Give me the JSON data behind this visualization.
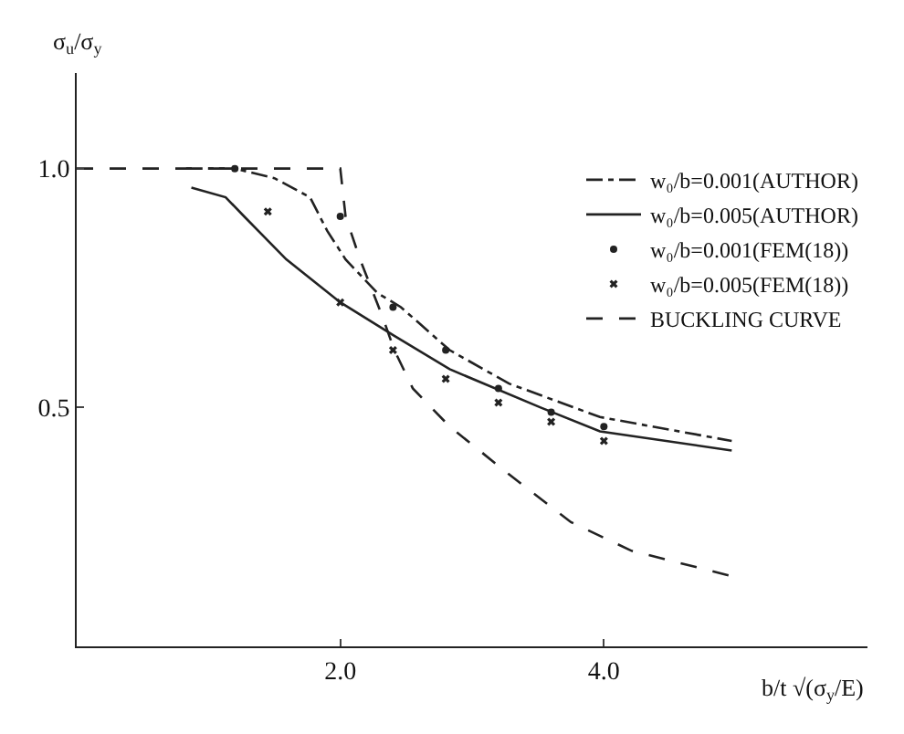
{
  "chart_data": {
    "type": "line",
    "xlabel": "b/t √(σ$_{y}$/E)",
    "ylabel": "σ$_{u}$/σ$_{y}$",
    "xlim": [
      0,
      6
    ],
    "ylim": [
      0,
      1.2
    ],
    "xticks": [
      {
        "value": 2,
        "label": "2.0"
      },
      {
        "value": 4,
        "label": "4.0"
      }
    ],
    "yticks": [
      {
        "value": 0.5,
        "label": "0.5"
      },
      {
        "value": 1,
        "label": "1.0"
      }
    ],
    "grid": false,
    "legend": "top right",
    "series": [
      {
        "name": "w₀/b=0.001(AUTHOR)",
        "line_style": "dashdot",
        "marker": "none",
        "color": "#222222",
        "x": [
          0.83,
          1.2,
          1.5,
          1.77,
          1.9,
          2.04,
          2.28,
          2.46,
          2.83,
          3.28,
          3.97,
          4.97
        ],
        "values": [
          1.0,
          1.0,
          0.98,
          0.94,
          0.87,
          0.81,
          0.74,
          0.71,
          0.62,
          0.55,
          0.48,
          0.43
        ]
      },
      {
        "name": "w₀/b=0.005(AUTHOR)",
        "line_style": "solid",
        "marker": "none",
        "color": "#222222",
        "x": [
          0.87,
          1.13,
          1.27,
          1.59,
          2.0,
          2.41,
          2.83,
          3.52,
          3.97,
          4.97
        ],
        "values": [
          0.96,
          0.94,
          0.9,
          0.81,
          0.72,
          0.65,
          0.58,
          0.5,
          0.45,
          0.41
        ]
      },
      {
        "name": "w₀/b=0.001(FEM(18))",
        "type": "scatter",
        "marker": "circle",
        "color": "#222222",
        "x": [
          1.2,
          2.0,
          2.4,
          2.8,
          3.2,
          3.6,
          4.0
        ],
        "values": [
          1.0,
          0.9,
          0.71,
          0.62,
          0.54,
          0.49,
          0.46
        ]
      },
      {
        "name": "w₀/b=0.005(FEM(18))",
        "type": "scatter",
        "marker": "cross",
        "color": "#222222",
        "x": [
          1.45,
          2.0,
          2.4,
          2.8,
          3.2,
          3.6,
          4.0
        ],
        "values": [
          0.91,
          0.72,
          0.62,
          0.56,
          0.51,
          0.47,
          0.43
        ]
      },
      {
        "name": "BUCKLING CURVE",
        "line_style": "dashed",
        "marker": "none",
        "color": "#222222",
        "x": [
          0,
          2.0,
          2.04,
          2.15,
          2.32,
          2.41,
          2.55,
          2.83,
          3.28,
          3.75,
          4.21,
          4.97
        ],
        "values": [
          1.0,
          1.0,
          0.9,
          0.81,
          0.69,
          0.62,
          0.54,
          0.46,
          0.36,
          0.26,
          0.2,
          0.147
        ]
      }
    ]
  }
}
